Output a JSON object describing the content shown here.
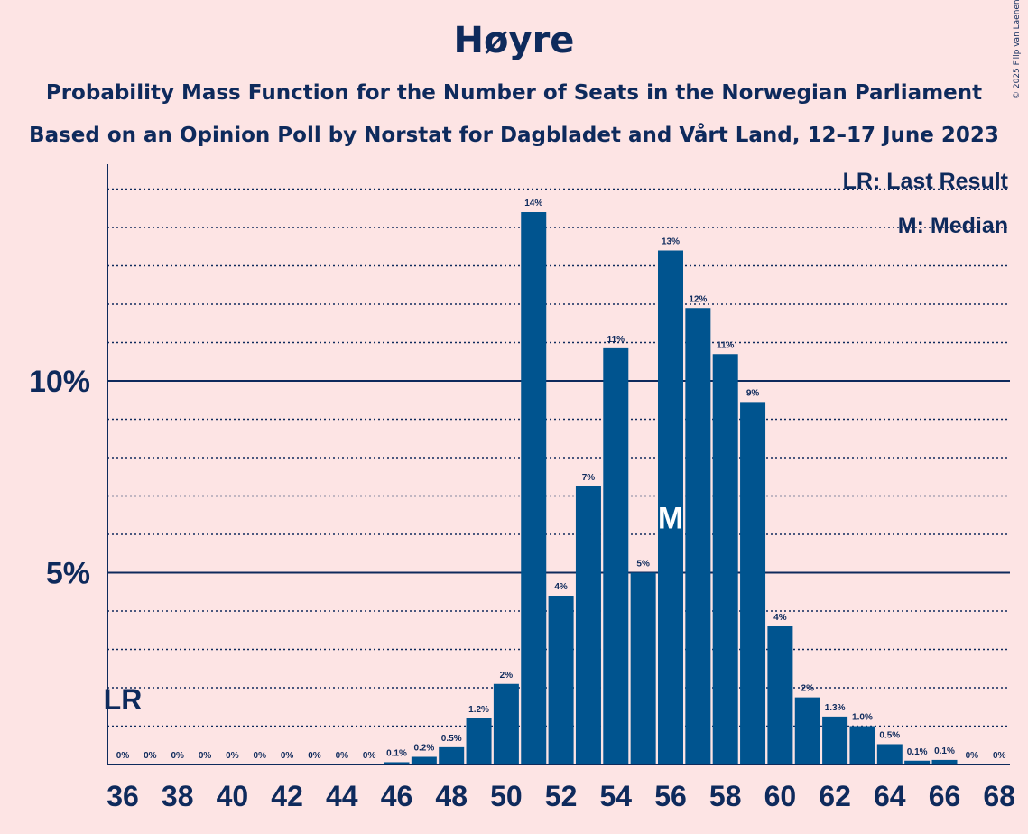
{
  "title": "Høyre",
  "subtitle1": "Probability Mass Function for the Number of Seats in the Norwegian Parliament",
  "subtitle2": "Based on an Opinion Poll by Norstat for Dagbladet and Vårt Land, 12–17 June 2023",
  "copyright": "© 2025 Filip van Laenen",
  "colors": {
    "background": "#fde4e4",
    "bar": "#00548f",
    "text": "#0e2a5c"
  },
  "chart_data": {
    "type": "bar",
    "xlabel": "",
    "ylabel": "",
    "ylim": [
      0,
      15.7
    ],
    "y_ticks": [
      {
        "value": 5,
        "label": "5%"
      },
      {
        "value": 10,
        "label": "10%"
      }
    ],
    "grid": "dotted lines every 1%, solid lines at 5% and 10%",
    "x_tick_labels": [
      "36",
      "38",
      "40",
      "42",
      "44",
      "46",
      "48",
      "50",
      "52",
      "54",
      "56",
      "58",
      "60",
      "62",
      "64",
      "66",
      "68"
    ],
    "categories": [
      36,
      37,
      38,
      39,
      40,
      41,
      42,
      43,
      44,
      45,
      46,
      47,
      48,
      49,
      50,
      51,
      52,
      53,
      54,
      55,
      56,
      57,
      58,
      59,
      60,
      61,
      62,
      63,
      64,
      65,
      66,
      67,
      68
    ],
    "values": [
      0,
      0,
      0,
      0,
      0,
      0,
      0,
      0,
      0,
      0,
      0.06,
      0.2,
      0.45,
      1.2,
      2.1,
      14.4,
      4.4,
      7.25,
      10.85,
      5.0,
      13.4,
      11.9,
      10.7,
      9.45,
      3.6,
      1.75,
      1.25,
      1.0,
      0.53,
      0.1,
      0.12,
      0,
      0
    ],
    "data_labels": [
      "0%",
      "0%",
      "0%",
      "0%",
      "0%",
      "0%",
      "0%",
      "0%",
      "0%",
      "0%",
      "0.1%",
      "0.2%",
      "0.5%",
      "1.2%",
      "2%",
      "14%",
      "4%",
      "7%",
      "11%",
      "5%",
      "13%",
      "12%",
      "11%",
      "9%",
      "4%",
      "2%",
      "1.3%",
      "1.0%",
      "0.5%",
      "0.1%",
      "0.1%",
      "0%",
      "0%"
    ],
    "last_result": {
      "seats": 36,
      "label": "LR"
    },
    "median": {
      "seats": 56,
      "label": "M"
    },
    "legend": [
      "LR: Last Result",
      "M: Median"
    ],
    "legend_position": "top-right"
  }
}
